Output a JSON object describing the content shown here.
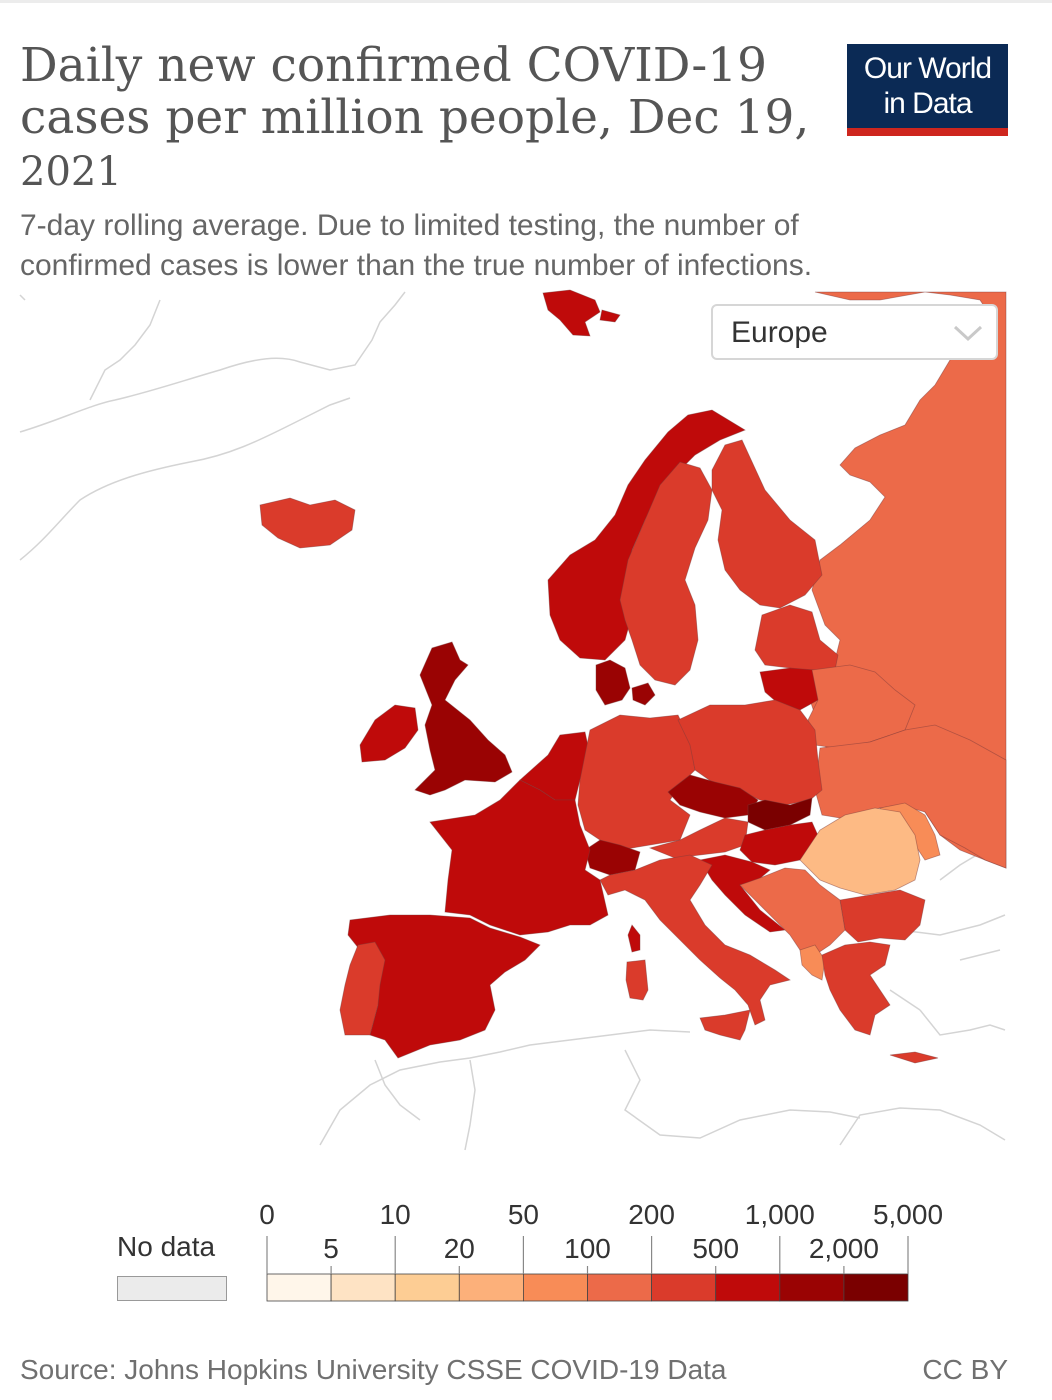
{
  "header": {
    "title": "Daily new confirmed COVID-19 cases per million people, Dec 19,",
    "title_year": "2021",
    "subtitle": "7-day rolling average. Due to limited testing, the number of confirmed cases is lower than the true number of infections."
  },
  "logo": {
    "line1": "Our World",
    "line2": "in Data"
  },
  "region_select": {
    "value": "Europe",
    "icon": "chevron-down-icon"
  },
  "legend": {
    "no_data_label": "No data",
    "no_data_color": "#ebebeb",
    "thresholds_top": [
      "0",
      "10",
      "50",
      "200",
      "1,000",
      "5,000"
    ],
    "thresholds_bottom": [
      "5",
      "20",
      "100",
      "500",
      "2,000"
    ],
    "bins": [
      {
        "range": "0-5",
        "color": "#fff6ea"
      },
      {
        "range": "5-10",
        "color": "#fee3c4"
      },
      {
        "range": "10-20",
        "color": "#fdcd94"
      },
      {
        "range": "20-50",
        "color": "#fcb07a"
      },
      {
        "range": "50-100",
        "color": "#f88c57"
      },
      {
        "range": "100-200",
        "color": "#ec6a49"
      },
      {
        "range": "200-500",
        "color": "#da3b2b"
      },
      {
        "range": "500-1,000",
        "color": "#bf0a0a"
      },
      {
        "range": "1,000-2,000",
        "color": "#9a0303"
      },
      {
        "range": "2,000-5,000",
        "color": "#7a0000"
      }
    ]
  },
  "footer": {
    "source": "Source: Johns Hopkins University CSSE COVID-19 Data",
    "license": "CC BY"
  },
  "map": {
    "region": "Europe",
    "colors": {
      "russia": "#ec6a49",
      "ukraine": "#ec6a49",
      "belarus": "#ec6a49",
      "finland": "#da3b2b",
      "sweden": "#da3b2b",
      "norway": "#bf0a0a",
      "uk": "#9a0303",
      "ireland": "#bf0a0a",
      "iceland": "#da3b2b",
      "france": "#bf0a0a",
      "spain": "#bf0a0a",
      "portugal": "#da3b2b",
      "germany": "#da3b2b",
      "poland": "#da3b2b",
      "italy": "#da3b2b",
      "czechia": "#9a0303",
      "slovakia": "#7a0000",
      "austria": "#da3b2b",
      "switzerland": "#9a0303",
      "benelux": "#bf0a0a",
      "denmark": "#9a0303",
      "hungary": "#bf0a0a",
      "romania": "#fdba84",
      "bulgaria": "#da3b2b",
      "greece": "#da3b2b",
      "balkans": "#ec6a49",
      "croatia": "#bf0a0a",
      "baltics": "#da3b2b",
      "lithuania": "#bf0a0a",
      "moldova": "#f88c57",
      "svalbard": "#bf0a0a"
    }
  }
}
